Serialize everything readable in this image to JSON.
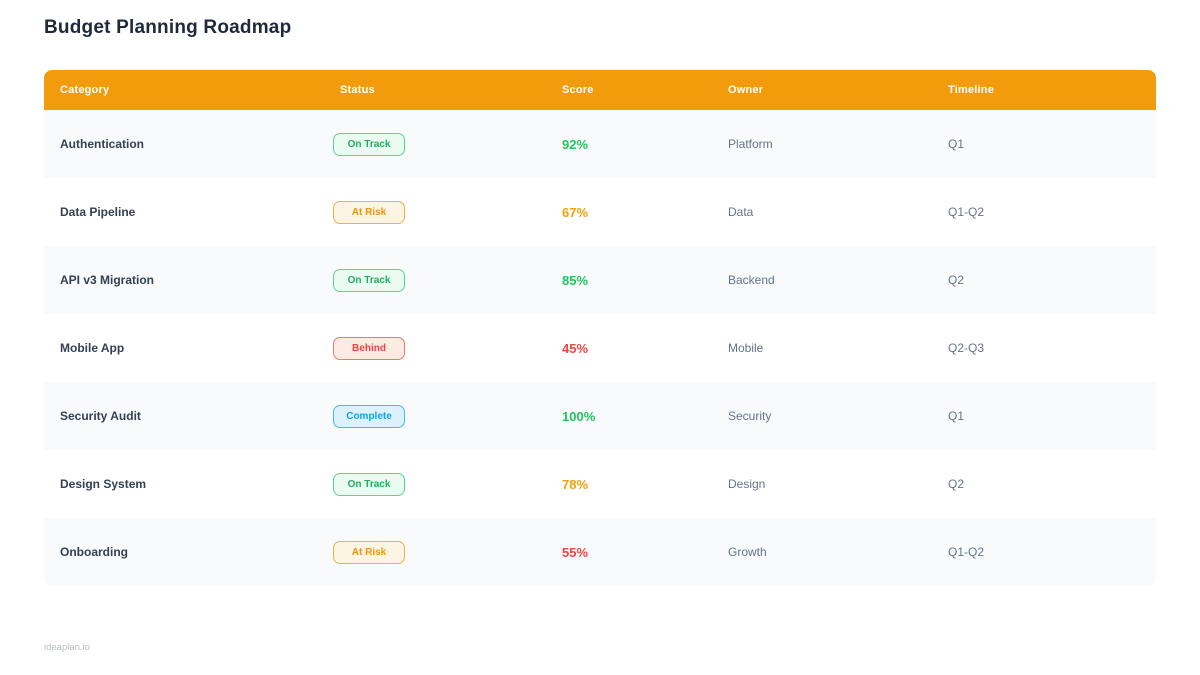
{
  "page": {
    "title": "Budget Planning Roadmap",
    "footer": "ideaplan.io"
  },
  "colors": {
    "header_bg": "#F39C0B",
    "score_green": "#21C45D",
    "score_orange": "#F59E0B",
    "score_red": "#EF4444",
    "badge_on_track": "#1FAE5E",
    "badge_at_risk": "#EE940B",
    "badge_behind": "#EF4444",
    "badge_complete": "#0DA3E8",
    "row_alt_bg": "#F8FAFC"
  },
  "table": {
    "columns": [
      "Category",
      "Status",
      "Score",
      "Owner",
      "Timeline"
    ],
    "rows": [
      {
        "category": "Authentication",
        "status": "On Track",
        "status_key": "on-track",
        "score": "92%",
        "score_tone": "green",
        "owner": "Platform",
        "timeline": "Q1"
      },
      {
        "category": "Data Pipeline",
        "status": "At Risk",
        "status_key": "at-risk",
        "score": "67%",
        "score_tone": "orange",
        "owner": "Data",
        "timeline": "Q1-Q2"
      },
      {
        "category": "API v3 Migration",
        "status": "On Track",
        "status_key": "on-track",
        "score": "85%",
        "score_tone": "green",
        "owner": "Backend",
        "timeline": "Q2"
      },
      {
        "category": "Mobile App",
        "status": "Behind",
        "status_key": "behind",
        "score": "45%",
        "score_tone": "red",
        "owner": "Mobile",
        "timeline": "Q2-Q3"
      },
      {
        "category": "Security Audit",
        "status": "Complete",
        "status_key": "complete",
        "score": "100%",
        "score_tone": "green",
        "owner": "Security",
        "timeline": "Q1"
      },
      {
        "category": "Design System",
        "status": "On Track",
        "status_key": "on-track",
        "score": "78%",
        "score_tone": "orange",
        "owner": "Design",
        "timeline": "Q2"
      },
      {
        "category": "Onboarding",
        "status": "At Risk",
        "status_key": "at-risk",
        "score": "55%",
        "score_tone": "red",
        "owner": "Growth",
        "timeline": "Q1-Q2"
      }
    ]
  }
}
